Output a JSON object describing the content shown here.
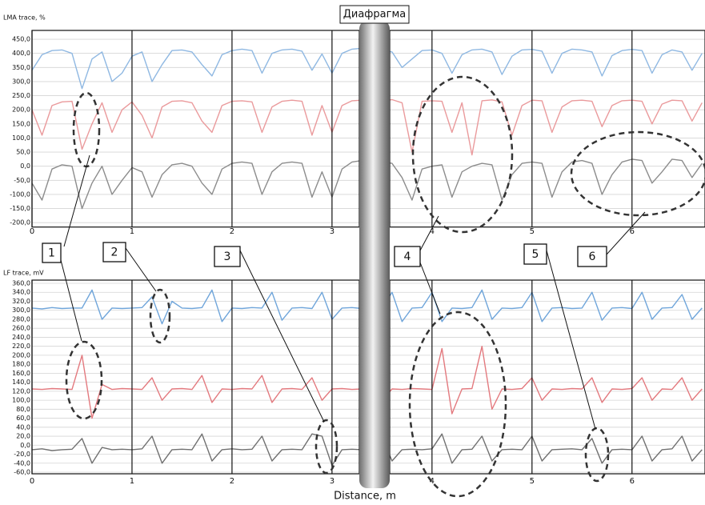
{
  "chart_data": [
    {
      "type": "line",
      "ylabel": "LMA trace, %",
      "xlim": [
        0,
        6.73
      ],
      "xticks": [
        0,
        1,
        2,
        3,
        4,
        5,
        6
      ],
      "ylim": [
        -210,
        470
      ],
      "yticks": [
        {
          "value": -200,
          "label": "-200,0"
        },
        {
          "value": -150,
          "label": "-150,0"
        },
        {
          "value": -100,
          "label": "-100,0"
        },
        {
          "value": -50,
          "label": "-50,0"
        },
        {
          "value": 0,
          "label": "0,0"
        },
        {
          "value": 50,
          "label": "50,0"
        },
        {
          "value": 100,
          "label": "100,0"
        },
        {
          "value": 150,
          "label": "150,0"
        },
        {
          "value": 200,
          "label": "200,0"
        },
        {
          "value": 250,
          "label": "250,0"
        },
        {
          "value": 300,
          "label": "300,0"
        },
        {
          "value": 350,
          "label": "350,0"
        },
        {
          "value": 400,
          "label": "400,0"
        },
        {
          "value": 450,
          "label": "450,0"
        }
      ],
      "grid": true,
      "x": [
        0,
        0.1,
        0.2,
        0.3,
        0.4,
        0.5,
        0.6,
        0.7,
        0.8,
        0.9,
        1,
        1.1,
        1.2,
        1.3,
        1.4,
        1.5,
        1.6,
        1.7,
        1.8,
        1.9,
        2,
        2.1,
        2.2,
        2.3,
        2.4,
        2.5,
        2.6,
        2.7,
        2.8,
        2.9,
        3,
        3.1,
        3.2,
        3.3,
        3.4,
        3.5,
        3.6,
        3.7,
        3.8,
        3.9,
        4,
        4.1,
        4.2,
        4.3,
        4.4,
        4.5,
        4.6,
        4.7,
        4.8,
        4.9,
        5,
        5.1,
        5.2,
        5.3,
        5.4,
        5.5,
        5.6,
        5.7,
        5.8,
        5.9,
        6,
        6.1,
        6.2,
        6.3,
        6.4,
        6.5,
        6.6,
        6.7
      ],
      "series": [
        {
          "color": "#8fb8e2",
          "values": [
            340,
            395,
            410,
            412,
            400,
            275,
            380,
            405,
            300,
            330,
            390,
            405,
            300,
            360,
            410,
            412,
            405,
            360,
            320,
            395,
            410,
            415,
            410,
            330,
            400,
            412,
            415,
            408,
            340,
            398,
            330,
            400,
            415,
            418,
            410,
            412,
            405,
            350,
            380,
            410,
            412,
            400,
            330,
            395,
            412,
            415,
            405,
            325,
            390,
            412,
            414,
            408,
            330,
            400,
            415,
            412,
            405,
            320,
            392,
            410,
            414,
            410,
            330,
            395,
            412,
            405,
            340,
            400
          ]
        },
        {
          "color": "#ea9a9c",
          "values": [
            200,
            110,
            215,
            228,
            230,
            60,
            150,
            225,
            120,
            200,
            228,
            180,
            100,
            210,
            230,
            232,
            225,
            160,
            120,
            215,
            230,
            232,
            228,
            120,
            210,
            230,
            234,
            230,
            110,
            215,
            120,
            215,
            232,
            234,
            230,
            232,
            236,
            225,
            50,
            230,
            232,
            230,
            120,
            225,
            40,
            232,
            235,
            228,
            110,
            215,
            234,
            232,
            120,
            210,
            232,
            234,
            230,
            140,
            215,
            232,
            234,
            230,
            150,
            220,
            234,
            232,
            160,
            225
          ]
        },
        {
          "color": "#8c8c8c",
          "values": [
            -60,
            -120,
            -10,
            5,
            0,
            -150,
            -60,
            0,
            -100,
            -50,
            -5,
            -20,
            -110,
            -30,
            5,
            10,
            0,
            -60,
            -100,
            -10,
            10,
            15,
            10,
            -100,
            -20,
            10,
            15,
            10,
            -110,
            -20,
            -110,
            -10,
            15,
            20,
            10,
            15,
            10,
            -40,
            -120,
            -10,
            0,
            5,
            -110,
            -20,
            0,
            10,
            5,
            -120,
            -30,
            10,
            15,
            10,
            -110,
            -20,
            15,
            20,
            10,
            -100,
            -30,
            15,
            25,
            20,
            -60,
            -20,
            25,
            20,
            -40,
            10
          ]
        }
      ]
    },
    {
      "type": "line",
      "ylabel": "LF trace, mV",
      "xlabel": "Distance, m",
      "xlim": [
        0,
        6.73
      ],
      "xticks": [
        0,
        1,
        2,
        3,
        4,
        5,
        6
      ],
      "ylim": [
        -60,
        360
      ],
      "yticks": [
        {
          "value": -60,
          "label": "-60,0"
        },
        {
          "value": -40,
          "label": "-40,0"
        },
        {
          "value": -20,
          "label": "-20,0"
        },
        {
          "value": 0,
          "label": "0,0"
        },
        {
          "value": 20,
          "label": "20,0"
        },
        {
          "value": 40,
          "label": "40,0"
        },
        {
          "value": 60,
          "label": "60,0"
        },
        {
          "value": 80,
          "label": "80,0"
        },
        {
          "value": 100,
          "label": "100,0"
        },
        {
          "value": 120,
          "label": "120,0"
        },
        {
          "value": 140,
          "label": "140,0"
        },
        {
          "value": 160,
          "label": "160,0"
        },
        {
          "value": 180,
          "label": "180,0"
        },
        {
          "value": 200,
          "label": "200,0"
        },
        {
          "value": 220,
          "label": "220,0"
        },
        {
          "value": 240,
          "label": "240,0"
        },
        {
          "value": 260,
          "label": "260,0"
        },
        {
          "value": 280,
          "label": "280,0"
        },
        {
          "value": 300,
          "label": "300,0"
        },
        {
          "value": 320,
          "label": "320,0"
        },
        {
          "value": 340,
          "label": "340,0"
        },
        {
          "value": 360,
          "label": "360,0"
        }
      ],
      "grid": true,
      "x": [
        0,
        0.1,
        0.2,
        0.3,
        0.4,
        0.5,
        0.6,
        0.7,
        0.8,
        0.9,
        1,
        1.1,
        1.2,
        1.3,
        1.4,
        1.5,
        1.6,
        1.7,
        1.8,
        1.9,
        2,
        2.1,
        2.2,
        2.3,
        2.4,
        2.5,
        2.6,
        2.7,
        2.8,
        2.9,
        3,
        3.1,
        3.2,
        3.3,
        3.4,
        3.5,
        3.6,
        3.7,
        3.8,
        3.9,
        4,
        4.1,
        4.2,
        4.3,
        4.4,
        4.5,
        4.6,
        4.7,
        4.8,
        4.9,
        5,
        5.1,
        5.2,
        5.3,
        5.4,
        5.5,
        5.6,
        5.7,
        5.8,
        5.9,
        6,
        6.1,
        6.2,
        6.3,
        6.4,
        6.5,
        6.6,
        6.7
      ],
      "series": [
        {
          "color": "#6fa5da",
          "values": [
            305,
            303,
            306,
            304,
            305,
            305,
            345,
            280,
            305,
            304,
            305,
            306,
            330,
            270,
            320,
            305,
            304,
            306,
            345,
            275,
            305,
            304,
            306,
            305,
            340,
            278,
            305,
            306,
            304,
            340,
            280,
            305,
            306,
            304,
            305,
            305,
            340,
            275,
            305,
            306,
            340,
            275,
            305,
            304,
            306,
            345,
            280,
            305,
            304,
            306,
            340,
            275,
            305,
            306,
            304,
            305,
            340,
            278,
            305,
            306,
            304,
            340,
            280,
            305,
            306,
            335,
            280,
            305
          ]
        },
        {
          "color": "#e3797e",
          "values": [
            125,
            124,
            126,
            125,
            124,
            200,
            60,
            135,
            124,
            126,
            125,
            124,
            150,
            100,
            125,
            126,
            124,
            155,
            95,
            125,
            124,
            126,
            125,
            155,
            95,
            125,
            126,
            124,
            150,
            100,
            125,
            126,
            124,
            125,
            150,
            100,
            125,
            124,
            126,
            125,
            124,
            215,
            70,
            125,
            126,
            220,
            80,
            125,
            124,
            126,
            150,
            100,
            125,
            124,
            126,
            125,
            150,
            95,
            125,
            124,
            126,
            150,
            100,
            125,
            124,
            150,
            100,
            125
          ]
        },
        {
          "color": "#707070",
          "values": [
            -10,
            -8,
            -12,
            -10,
            -9,
            15,
            -40,
            -5,
            -10,
            -9,
            -10,
            -8,
            20,
            -40,
            -10,
            -9,
            -10,
            25,
            -35,
            -10,
            -8,
            -10,
            -9,
            20,
            -35,
            -10,
            -9,
            -10,
            25,
            20,
            -45,
            -10,
            -9,
            -10,
            -8,
            20,
            -35,
            -10,
            -9,
            -10,
            -8,
            25,
            -40,
            -10,
            -9,
            20,
            -35,
            -10,
            -9,
            -10,
            20,
            -35,
            -10,
            -9,
            -8,
            -10,
            15,
            -40,
            -10,
            -9,
            -10,
            20,
            -35,
            -10,
            -8,
            20,
            -35,
            -10
          ]
        }
      ]
    }
  ],
  "diaphragm_label": "Диафрагма",
  "callouts": [
    "1",
    "2",
    "3",
    "4",
    "5",
    "6"
  ]
}
